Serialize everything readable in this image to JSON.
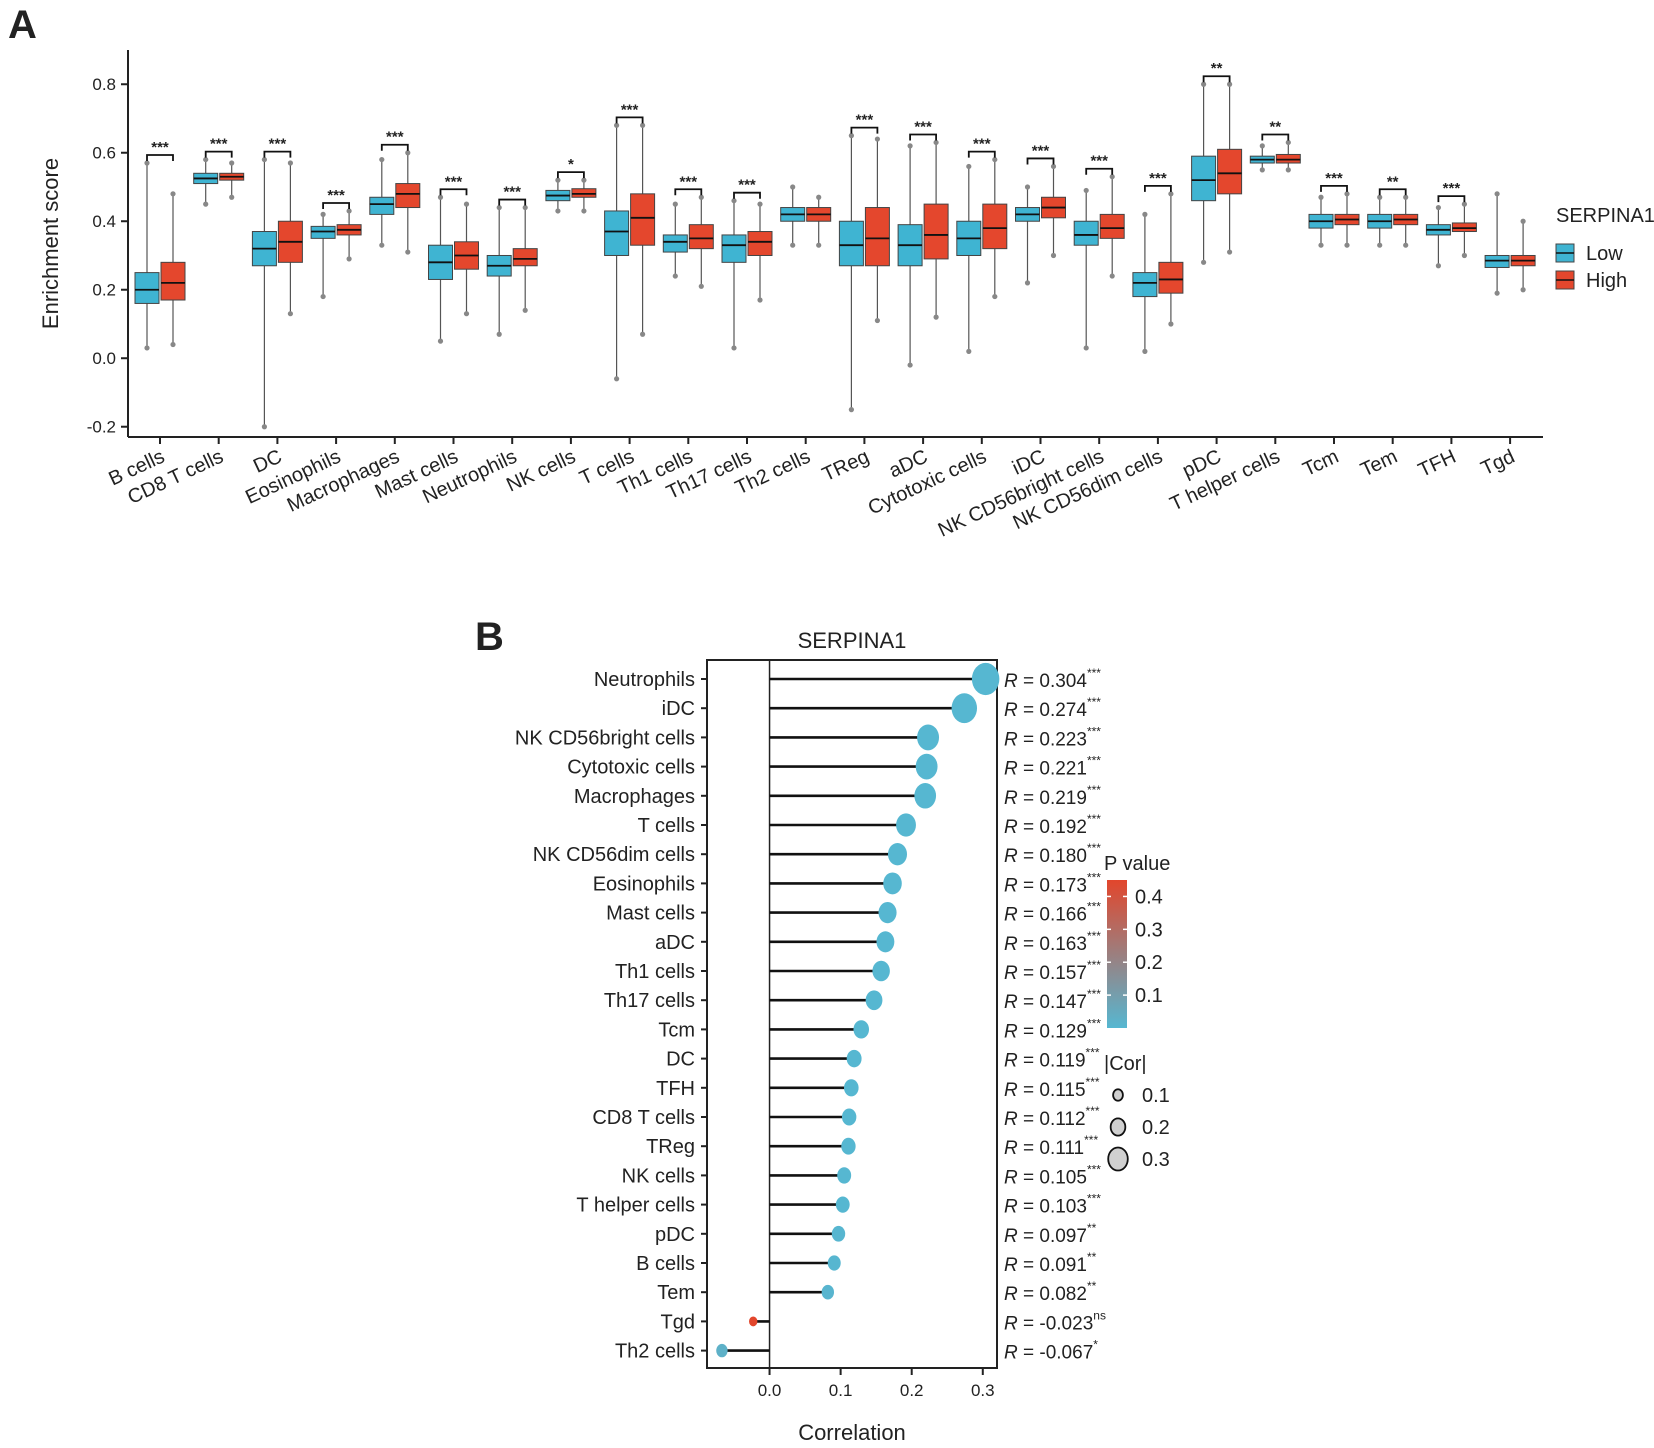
{
  "figure": {
    "panel_a_label": "A",
    "panel_b_label": "B"
  },
  "colors": {
    "low": "#3fb4d2",
    "high": "#e4472d",
    "p_low": "#56b7d1",
    "p_high": "#e2462c",
    "axis": "#222222",
    "outlier": "#888888"
  },
  "chart_data": [
    {
      "type": "box",
      "ylabel": "Enrichment score",
      "xlabel": "",
      "ylim": [
        -0.23,
        0.9
      ],
      "yticks": [
        "-0.2",
        "0.0",
        "0.2",
        "0.4",
        "0.6",
        "0.8"
      ],
      "legend": {
        "title": "SERPINA1",
        "entries": [
          "Low",
          "High"
        ],
        "position": "right"
      },
      "categories": [
        "B cells",
        "CD8 T cells",
        "DC",
        "Eosinophils",
        "Macrophages",
        "Mast cells",
        "Neutrophils",
        "NK cells",
        "T cells",
        "Th1 cells",
        "Th17 cells",
        "Th2 cells",
        "TReg",
        "aDC",
        "Cytotoxic cells",
        "iDC",
        "NK CD56bright cells",
        "NK CD56dim cells",
        "pDC",
        "T helper cells",
        "Tcm",
        "Tem",
        "TFH",
        "Tgd"
      ],
      "significance": [
        "***",
        "***",
        "***",
        "***",
        "***",
        "***",
        "***",
        "*",
        "***",
        "***",
        "***",
        "",
        "***",
        "***",
        "***",
        "***",
        "***",
        "***",
        "**",
        "**",
        "***",
        "**",
        "***",
        ""
      ],
      "series": [
        {
          "name": "Low",
          "boxes": [
            [
              0.03,
              0.16,
              0.2,
              0.25,
              0.57
            ],
            [
              0.45,
              0.51,
              0.525,
              0.54,
              0.58
            ],
            [
              -0.2,
              0.27,
              0.32,
              0.37,
              0.58
            ],
            [
              0.18,
              0.35,
              0.37,
              0.385,
              0.42
            ],
            [
              0.33,
              0.42,
              0.45,
              0.47,
              0.58
            ],
            [
              0.05,
              0.23,
              0.28,
              0.33,
              0.47
            ],
            [
              0.07,
              0.24,
              0.27,
              0.3,
              0.44
            ],
            [
              0.43,
              0.46,
              0.475,
              0.49,
              0.52
            ],
            [
              -0.06,
              0.3,
              0.37,
              0.43,
              0.68
            ],
            [
              0.24,
              0.31,
              0.34,
              0.36,
              0.45
            ],
            [
              0.03,
              0.28,
              0.33,
              0.36,
              0.46
            ],
            [
              0.33,
              0.4,
              0.42,
              0.44,
              0.5
            ],
            [
              -0.15,
              0.27,
              0.33,
              0.4,
              0.65
            ],
            [
              -0.02,
              0.27,
              0.33,
              0.39,
              0.62
            ],
            [
              0.02,
              0.3,
              0.35,
              0.4,
              0.56
            ],
            [
              0.22,
              0.4,
              0.42,
              0.44,
              0.5
            ],
            [
              0.03,
              0.33,
              0.36,
              0.4,
              0.49
            ],
            [
              0.02,
              0.18,
              0.22,
              0.25,
              0.42
            ],
            [
              0.28,
              0.46,
              0.52,
              0.59,
              0.8
            ],
            [
              0.55,
              0.57,
              0.58,
              0.59,
              0.62
            ],
            [
              0.33,
              0.38,
              0.4,
              0.42,
              0.47
            ],
            [
              0.33,
              0.38,
              0.4,
              0.42,
              0.47
            ],
            [
              0.27,
              0.36,
              0.375,
              0.39,
              0.44
            ],
            [
              0.19,
              0.265,
              0.285,
              0.3,
              0.48
            ]
          ]
        },
        {
          "name": "High",
          "boxes": [
            [
              0.04,
              0.17,
              0.22,
              0.28,
              0.48
            ],
            [
              0.47,
              0.52,
              0.53,
              0.54,
              0.57
            ],
            [
              0.13,
              0.28,
              0.34,
              0.4,
              0.57
            ],
            [
              0.29,
              0.36,
              0.375,
              0.39,
              0.43
            ],
            [
              0.31,
              0.44,
              0.48,
              0.51,
              0.6
            ],
            [
              0.13,
              0.26,
              0.3,
              0.34,
              0.45
            ],
            [
              0.14,
              0.27,
              0.29,
              0.32,
              0.44
            ],
            [
              0.43,
              0.47,
              0.48,
              0.495,
              0.52
            ],
            [
              0.07,
              0.33,
              0.41,
              0.48,
              0.68
            ],
            [
              0.21,
              0.32,
              0.35,
              0.39,
              0.47
            ],
            [
              0.17,
              0.3,
              0.34,
              0.37,
              0.45
            ],
            [
              0.33,
              0.4,
              0.42,
              0.44,
              0.47
            ],
            [
              0.11,
              0.27,
              0.35,
              0.44,
              0.64
            ],
            [
              0.12,
              0.29,
              0.36,
              0.45,
              0.63
            ],
            [
              0.18,
              0.32,
              0.38,
              0.45,
              0.58
            ],
            [
              0.3,
              0.41,
              0.44,
              0.47,
              0.56
            ],
            [
              0.24,
              0.35,
              0.38,
              0.42,
              0.53
            ],
            [
              0.1,
              0.19,
              0.23,
              0.28,
              0.48
            ],
            [
              0.31,
              0.48,
              0.54,
              0.61,
              0.8
            ],
            [
              0.55,
              0.57,
              0.58,
              0.595,
              0.63
            ],
            [
              0.33,
              0.39,
              0.405,
              0.42,
              0.48
            ],
            [
              0.33,
              0.39,
              0.405,
              0.42,
              0.47
            ],
            [
              0.3,
              0.37,
              0.38,
              0.395,
              0.45
            ],
            [
              0.2,
              0.27,
              0.285,
              0.3,
              0.4
            ]
          ]
        }
      ]
    },
    {
      "type": "lollipop",
      "title": "SERPINA1",
      "xlabel": "Correlation",
      "xlim": [
        -0.088,
        0.32
      ],
      "xticks": [
        "0.0",
        "0.1",
        "0.2",
        "0.3"
      ],
      "categories": [
        "Neutrophils",
        "iDC",
        "NK CD56bright cells",
        "Cytotoxic cells",
        "Macrophages",
        "T cells",
        "NK CD56dim cells",
        "Eosinophils",
        "Mast cells",
        "aDC",
        "Th1 cells",
        "Th17 cells",
        "Tcm",
        "DC",
        "TFH",
        "CD8 T cells",
        "TReg",
        "NK cells",
        "T helper cells",
        "pDC",
        "B cells",
        "Tem",
        "Tgd",
        "Th2 cells"
      ],
      "values": [
        0.304,
        0.274,
        0.223,
        0.221,
        0.219,
        0.192,
        0.18,
        0.173,
        0.166,
        0.163,
        0.157,
        0.147,
        0.129,
        0.119,
        0.115,
        0.112,
        0.111,
        0.105,
        0.103,
        0.097,
        0.091,
        0.082,
        -0.023,
        -0.067
      ],
      "value_labels": [
        "0.304",
        "0.274",
        "0.223",
        "0.221",
        "0.219",
        "0.192",
        "0.180",
        "0.173",
        "0.166",
        "0.163",
        "0.157",
        "0.147",
        "0.129",
        "0.119",
        "0.115",
        "0.112",
        "0.111",
        "0.105",
        "0.103",
        "0.097",
        "0.091",
        "0.082",
        "-0.023",
        "-0.067"
      ],
      "pvalues": [
        0.0,
        0.0,
        0.0,
        0.0,
        0.0,
        0.0,
        0.0,
        0.0,
        0.0,
        0.0,
        0.0,
        0.0,
        0.0,
        0.0,
        0.0,
        0.0,
        0.0,
        0.0,
        0.0,
        0.002,
        0.003,
        0.006,
        0.45,
        0.025
      ],
      "significance": [
        "***",
        "***",
        "***",
        "***",
        "***",
        "***",
        "***",
        "***",
        "***",
        "***",
        "***",
        "***",
        "***",
        "***",
        "***",
        "***",
        "***",
        "***",
        "***",
        "**",
        "**",
        "**",
        "ns",
        "*"
      ],
      "r_prefix": "R = ",
      "legend_p": {
        "title": "P value",
        "ticks": [
          "0.4",
          "0.3",
          "0.2",
          "0.1"
        ],
        "tick_values": [
          0.4,
          0.3,
          0.2,
          0.1
        ],
        "range": [
          0.0,
          0.45
        ]
      },
      "legend_cor": {
        "title": "|Cor|",
        "labels": [
          "0.1",
          "0.2",
          "0.3"
        ],
        "values": [
          0.1,
          0.2,
          0.3
        ]
      }
    }
  ]
}
